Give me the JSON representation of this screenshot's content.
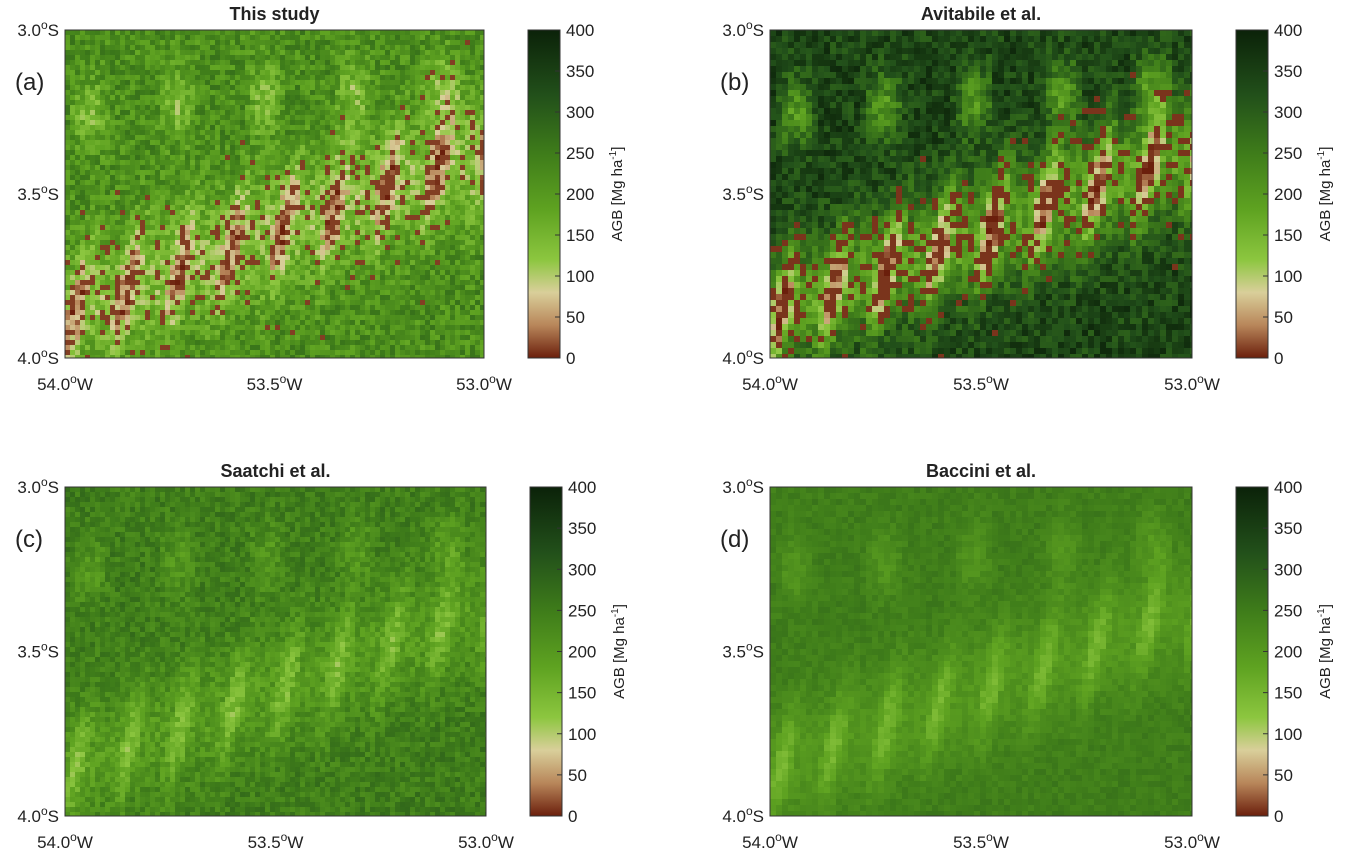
{
  "panels": [
    {
      "title": "This study",
      "label": "(a)"
    },
    {
      "title": "Avitabile et al.",
      "label": "(b)"
    },
    {
      "title": "Saatchi et al.",
      "label": "(c)"
    },
    {
      "title": "Baccini et al.",
      "label": "(d)"
    }
  ],
  "yticks": [
    {
      "number": "3.0",
      "sup": "o",
      "hemisphere": "S"
    },
    {
      "number": "3.5",
      "sup": "o",
      "hemisphere": "S"
    },
    {
      "number": "4.0",
      "sup": "o",
      "hemisphere": "S"
    }
  ],
  "xticks": [
    {
      "number": "54.0",
      "sup": "o",
      "hemisphere": "W"
    },
    {
      "number": "53.5",
      "sup": "o",
      "hemisphere": "W"
    },
    {
      "number": "53.0",
      "sup": "o",
      "hemisphere": "W"
    }
  ],
  "colorbar": {
    "ticks": [
      0,
      50,
      100,
      150,
      200,
      250,
      300,
      350,
      400
    ],
    "label": {
      "text": "AGB  [Mg ha",
      "sup": "-1",
      "close": "]"
    }
  }
}
